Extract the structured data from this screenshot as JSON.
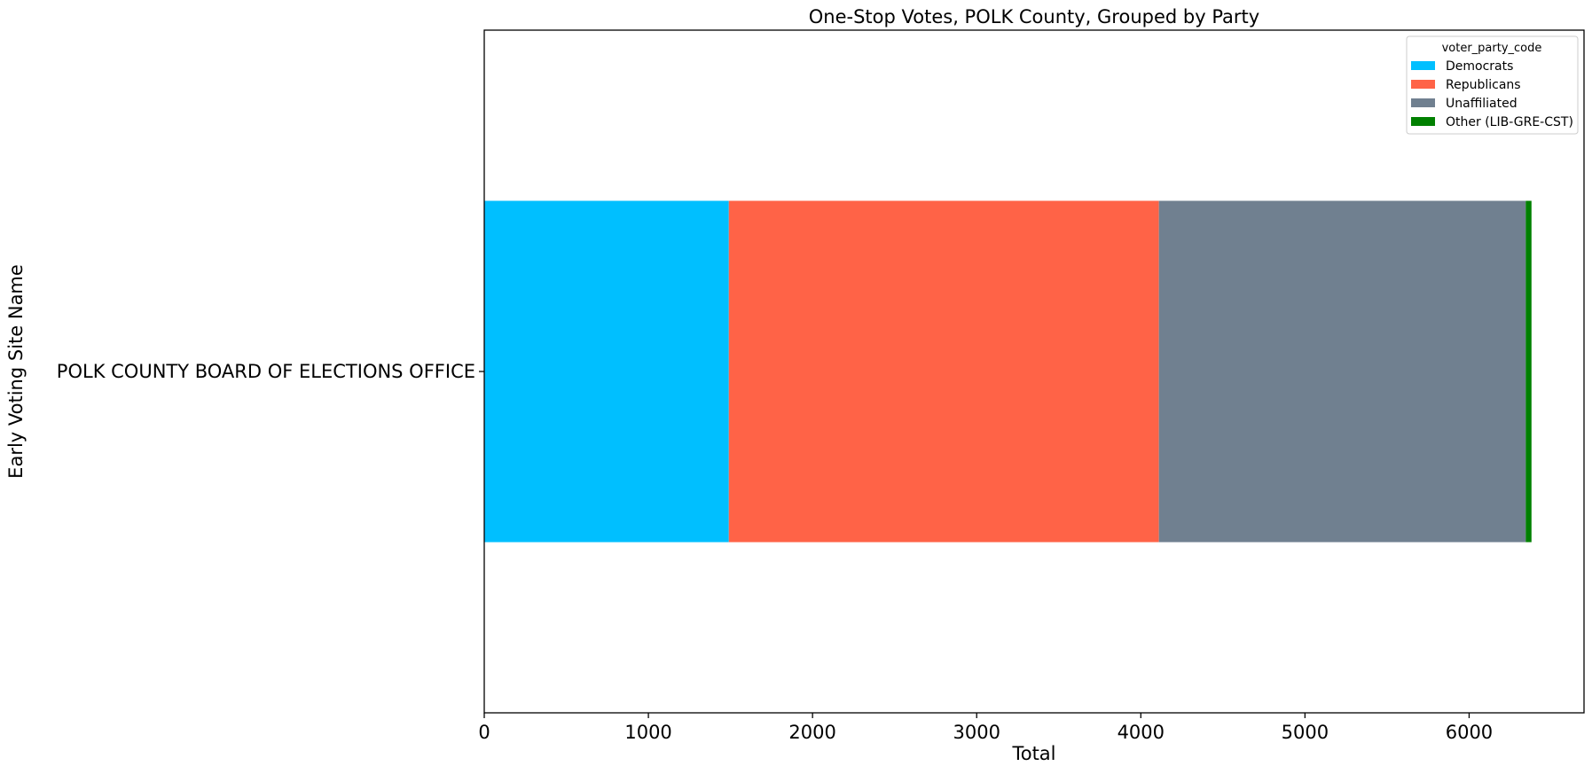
{
  "chart_data": {
    "type": "bar",
    "orientation": "horizontal",
    "stacked": true,
    "title": "One-Stop Votes, POLK County, Grouped by Party",
    "xlabel": "Total",
    "ylabel": "Early Voting Site Name",
    "categories": [
      "POLK COUNTY BOARD OF ELECTIONS OFFICE"
    ],
    "xlim": [
      0,
      6700
    ],
    "xticks": [
      "0",
      "1000",
      "2000",
      "3000",
      "4000",
      "5000",
      "6000"
    ],
    "grid": false,
    "legend": {
      "title": "voter_party_code",
      "placement": "top-right"
    },
    "series": [
      {
        "name": "Democrats",
        "values": [
          1490
        ],
        "color": "#00BFFF"
      },
      {
        "name": "Republicans",
        "values": [
          2620
        ],
        "color": "#FF6347"
      },
      {
        "name": "Unaffiliated",
        "values": [
          2235
        ],
        "color": "#708090"
      },
      {
        "name": "Other (LIB-GRE-CST)",
        "values": [
          35
        ],
        "color": "#008000"
      }
    ]
  }
}
